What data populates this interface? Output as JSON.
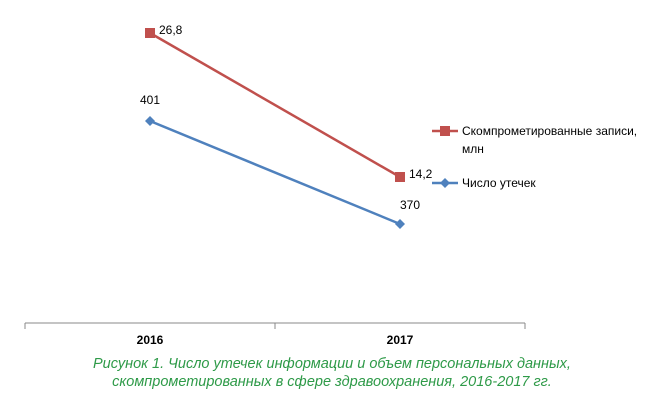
{
  "chart_data": {
    "type": "line",
    "categories": [
      "2016",
      "2017"
    ],
    "series": [
      {
        "name": "Скомпрометированные записи, млн",
        "color": "#c0504d",
        "marker": "square",
        "values": [
          26.8,
          14.2
        ],
        "value_labels": [
          "26,8",
          "14,2"
        ]
      },
      {
        "name": "Число утечек",
        "color": "#4f81bd",
        "marker": "diamond",
        "values": [
          401,
          370
        ]
      }
    ],
    "legend": "right",
    "caption": [
      "Рисунок 1. Число утечек информации и объем персональных данных,",
      "скомпрометированных в сфере здравоохранения, 2016-2017 гг."
    ]
  }
}
